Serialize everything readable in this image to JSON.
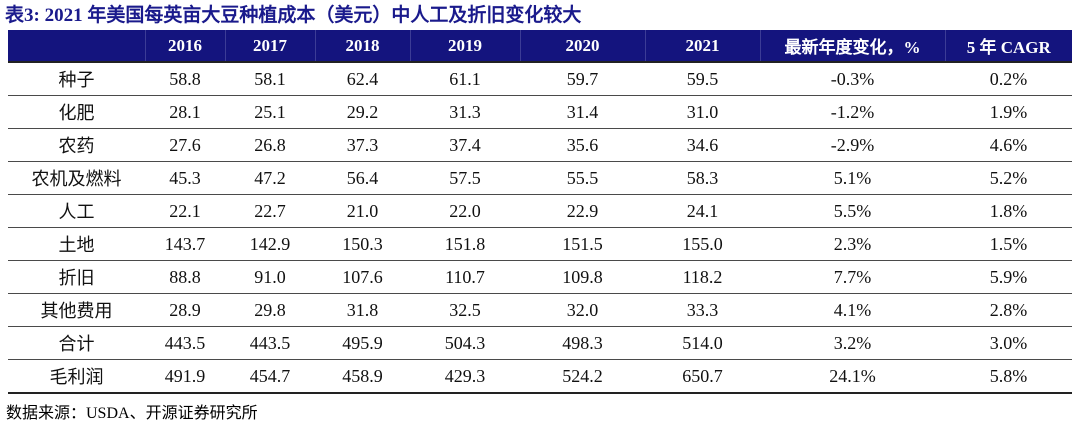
{
  "title": "表3:  2021 年美国每英亩大豆种植成本（美元）中人工及折旧变化较大",
  "footer": {
    "source": "数据来源：USDA、开源证券研究所"
  },
  "colors": {
    "header_bg": "#14147E",
    "title_navy": "#1A1A8C"
  },
  "chart_data": {
    "type": "table",
    "title": "2021 年美国每英亩大豆种植成本（美元）中人工及折旧变化较大",
    "columns": [
      "",
      "2016",
      "2017",
      "2018",
      "2019",
      "2020",
      "2021",
      "最新年度变化，%",
      "5 年 CAGR"
    ],
    "rows": [
      {
        "label": "种子",
        "values": [
          "58.8",
          "58.1",
          "62.4",
          "61.1",
          "59.7",
          "59.5",
          "-0.3%",
          "0.2%"
        ]
      },
      {
        "label": "化肥",
        "values": [
          "28.1",
          "25.1",
          "29.2",
          "31.3",
          "31.4",
          "31.0",
          "-1.2%",
          "1.9%"
        ]
      },
      {
        "label": "农药",
        "values": [
          "27.6",
          "26.8",
          "37.3",
          "37.4",
          "35.6",
          "34.6",
          "-2.9%",
          "4.6%"
        ]
      },
      {
        "label": "农机及燃料",
        "values": [
          "45.3",
          "47.2",
          "56.4",
          "57.5",
          "55.5",
          "58.3",
          "5.1%",
          "5.2%"
        ]
      },
      {
        "label": "人工",
        "values": [
          "22.1",
          "22.7",
          "21.0",
          "22.0",
          "22.9",
          "24.1",
          "5.5%",
          "1.8%"
        ]
      },
      {
        "label": "土地",
        "values": [
          "143.7",
          "142.9",
          "150.3",
          "151.8",
          "151.5",
          "155.0",
          "2.3%",
          "1.5%"
        ]
      },
      {
        "label": "折旧",
        "values": [
          "88.8",
          "91.0",
          "107.6",
          "110.7",
          "109.8",
          "118.2",
          "7.7%",
          "5.9%"
        ]
      },
      {
        "label": "其他费用",
        "values": [
          "28.9",
          "29.8",
          "31.8",
          "32.5",
          "32.0",
          "33.3",
          "4.1%",
          "2.8%"
        ]
      },
      {
        "label": "合计",
        "values": [
          "443.5",
          "443.5",
          "495.9",
          "504.3",
          "498.3",
          "514.0",
          "3.2%",
          "3.0%"
        ]
      },
      {
        "label": "毛利润",
        "values": [
          "491.9",
          "454.7",
          "458.9",
          "429.3",
          "524.2",
          "650.7",
          "24.1%",
          "5.8%"
        ]
      }
    ]
  }
}
